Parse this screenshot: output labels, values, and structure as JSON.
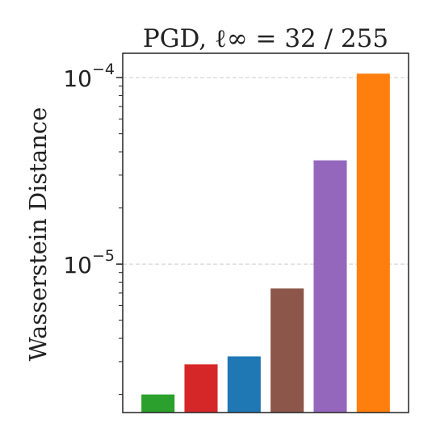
{
  "chart_data": {
    "type": "bar",
    "title": "PGD, ℓ∞ = 32 / 255",
    "xlabel": "",
    "ylabel": "Wasserstein Distance",
    "yscale": "log",
    "ylim": [
      1.6e-06,
      0.000135
    ],
    "grid": "y-major dashed",
    "legend": "none",
    "categories": [
      "",
      "",
      "",
      "",
      "",
      ""
    ],
    "values": [
      2e-06,
      2.9e-06,
      3.2e-06,
      7.4e-06,
      3.6e-05,
      0.000105
    ],
    "colors": [
      "#2ca02c",
      "#d62728",
      "#1f77b4",
      "#8c564b",
      "#9467bd",
      "#ff7f0e"
    ],
    "yticks": [
      {
        "base": "10",
        "exp": "−5",
        "value": 1e-05
      },
      {
        "base": "10",
        "exp": "−4",
        "value": 0.0001
      }
    ]
  }
}
